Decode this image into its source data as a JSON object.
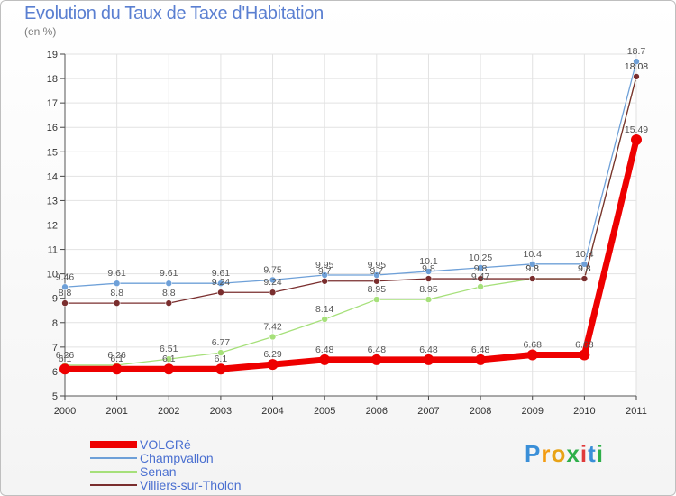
{
  "header": {
    "title": "Evolution du Taux de Taxe d'Habitation",
    "unit": "(en %)"
  },
  "logo": {
    "text": "Proxiti"
  },
  "chart_data": {
    "type": "line",
    "title": "Evolution du Taux de Taxe d'Habitation",
    "ylabel": "(en %)",
    "xlabel": "",
    "ylim": [
      5,
      19
    ],
    "yticks": [
      5,
      6,
      7,
      8,
      9,
      10,
      11,
      12,
      13,
      14,
      15,
      16,
      17,
      18,
      19
    ],
    "grid": true,
    "legend_position": "bottom-left",
    "x": [
      "2000",
      "2001",
      "2002",
      "2003",
      "2004",
      "2005",
      "2006",
      "2007",
      "2008",
      "2009",
      "2010",
      "2011"
    ],
    "series": [
      {
        "name": "VOLGRé",
        "color": "#ee0000",
        "values": [
          6.1,
          6.1,
          6.1,
          6.1,
          6.29,
          6.48,
          6.48,
          6.48,
          6.48,
          6.68,
          6.68,
          15.49
        ],
        "labels": [
          "6.1",
          "6.1",
          "6.1",
          "6.1",
          "6.29",
          "6.48",
          "6.48",
          "6.48",
          "6.48",
          "6.68",
          "6.68",
          "15.49"
        ]
      },
      {
        "name": "Champvallon",
        "color": "#6ea0d8",
        "values": [
          9.46,
          9.61,
          9.61,
          9.61,
          9.75,
          9.95,
          9.95,
          10.1,
          10.25,
          10.4,
          10.4,
          18.7
        ],
        "labels": [
          "9.46",
          "9.61",
          "9.61",
          "9.61",
          "9.75",
          "9.95",
          "9.95",
          "10.1",
          "10.25",
          "10.4",
          "10.4",
          "18.7"
        ]
      },
      {
        "name": "Senan",
        "color": "#a6e07a",
        "values": [
          6.26,
          6.26,
          6.51,
          6.77,
          7.42,
          8.14,
          8.95,
          8.95,
          9.47,
          9.8,
          9.8,
          18.08
        ],
        "labels": [
          "6.26",
          "6.26",
          "6.51",
          "6.77",
          "7.42",
          "8.14",
          "8.95",
          "8.95",
          "9.47",
          "9.8",
          "9.8",
          "18.08"
        ]
      },
      {
        "name": "Villiers-sur-Tholon",
        "color": "#7a2e2e",
        "values": [
          8.8,
          8.8,
          8.8,
          9.24,
          9.24,
          9.7,
          9.7,
          9.8,
          9.8,
          9.8,
          9.8,
          18.08
        ],
        "labels": [
          "8.8",
          "8.8",
          "8.8",
          "9.24",
          "9.24",
          "9.7",
          "9.7",
          "9.8",
          "9.8",
          "9.8",
          "9.8",
          "18.08"
        ]
      }
    ]
  }
}
